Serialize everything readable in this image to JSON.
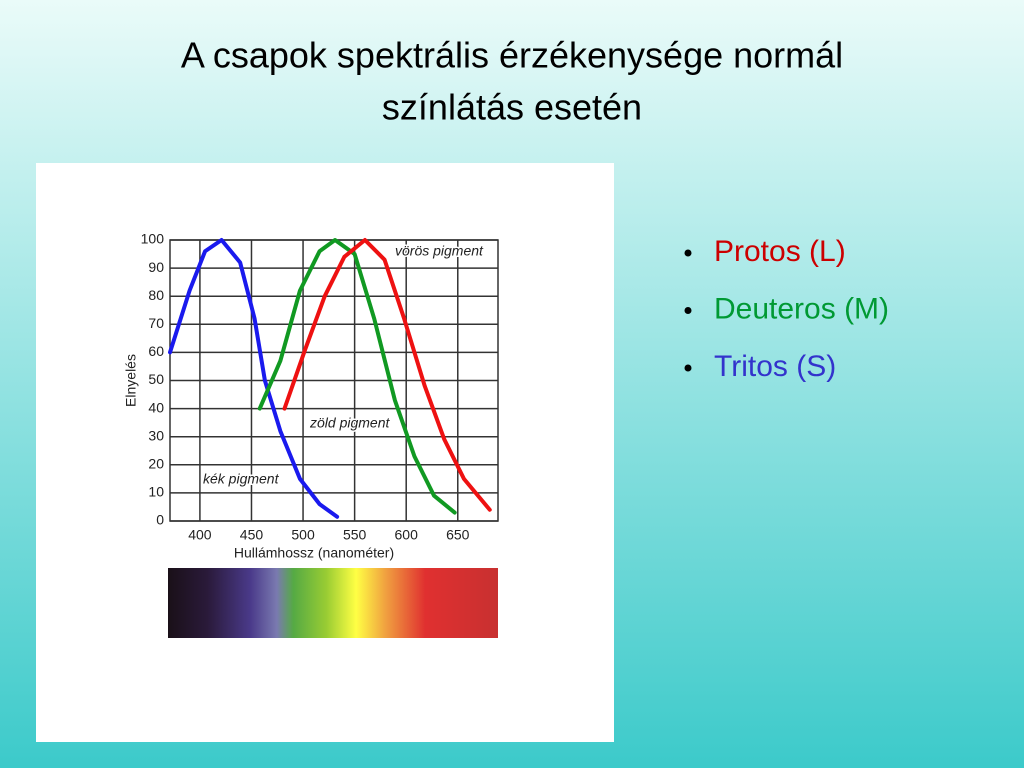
{
  "title": [
    "A csapok spektrális érzékenysége normál",
    "színlátás esetén"
  ],
  "bullets": [
    {
      "text": "Protos (L)",
      "color": "#cc0000"
    },
    {
      "text": "Deuteros (M)",
      "color": "#009933"
    },
    {
      "text": "Tritos (S)",
      "color": "#3333cc"
    }
  ],
  "chart_data": {
    "type": "line",
    "xlabel": "Hullámhossz (nanométer)",
    "ylabel": "Elnyelés",
    "xlim": [
      371,
      689
    ],
    "ylim": [
      0,
      100
    ],
    "xticks": [
      400,
      450,
      500,
      550,
      600,
      650
    ],
    "yticks": [
      0,
      10,
      20,
      30,
      40,
      50,
      60,
      70,
      80,
      90,
      100
    ],
    "grid": true,
    "annotations": [
      "vörös pigment",
      "zöld pigment",
      "kék pigment"
    ],
    "series": [
      {
        "name": "kék pigment",
        "color": "#1a1aee",
        "x": [
          371,
          390,
          405,
          421,
          439,
          453,
          463,
          478,
          497,
          516,
          533
        ],
        "values": [
          60,
          82,
          96,
          100,
          92,
          72,
          50,
          32,
          15,
          6,
          1.5
        ]
      },
      {
        "name": "zöld pigment",
        "color": "#119922",
        "x": [
          458,
          478,
          497,
          516,
          531,
          550,
          569,
          589,
          608,
          627,
          647
        ],
        "values": [
          40,
          57,
          82,
          96,
          100,
          95,
          72,
          43,
          23,
          9,
          3
        ]
      },
      {
        "name": "vörös pigment",
        "color": "#ee1111",
        "x": [
          482,
          502,
          521,
          540,
          560,
          579,
          598,
          618,
          637,
          656,
          681
        ],
        "values": [
          40,
          61,
          80,
          94,
          100,
          93,
          72,
          48,
          29,
          15,
          4
        ]
      }
    ]
  }
}
